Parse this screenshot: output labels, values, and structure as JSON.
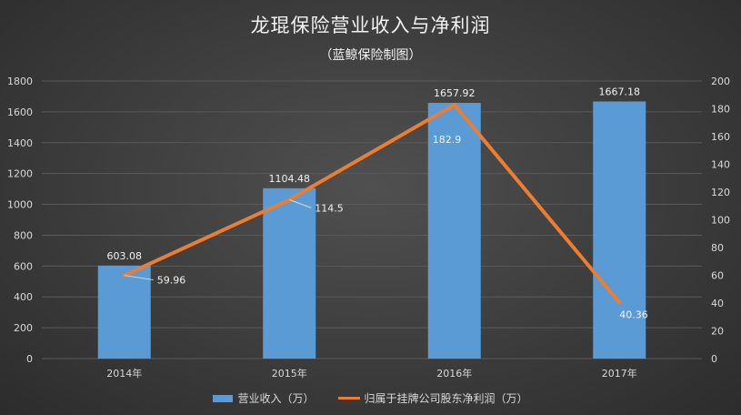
{
  "title": "龙琨保险营业收入与净利润",
  "subtitle": "（蓝鲸保险制图）",
  "chart_data": {
    "type": "bar+line",
    "categories": [
      "2014年",
      "2015年",
      "2016年",
      "2017年"
    ],
    "series": [
      {
        "name": "营业收入（万）",
        "type": "bar",
        "axis": "left",
        "values": [
          603.08,
          1104.48,
          1657.92,
          1667.18
        ],
        "labels": [
          "603.08",
          "1104.48",
          "1657.92",
          "1667.18"
        ]
      },
      {
        "name": "归属于挂牌公司股东净利润（万）",
        "type": "line",
        "axis": "right",
        "values": [
          59.96,
          114.5,
          182.9,
          40.36
        ],
        "labels": [
          "59.96",
          "114.5",
          "182.9",
          "40.36"
        ]
      }
    ],
    "y_left": {
      "min": 0,
      "max": 1800,
      "step": 200
    },
    "y_right": {
      "min": 0,
      "max": 200,
      "step": 20
    },
    "colors": {
      "bar": "#5b9bd5",
      "line": "#ed7d31"
    },
    "legend_position": "bottom"
  }
}
